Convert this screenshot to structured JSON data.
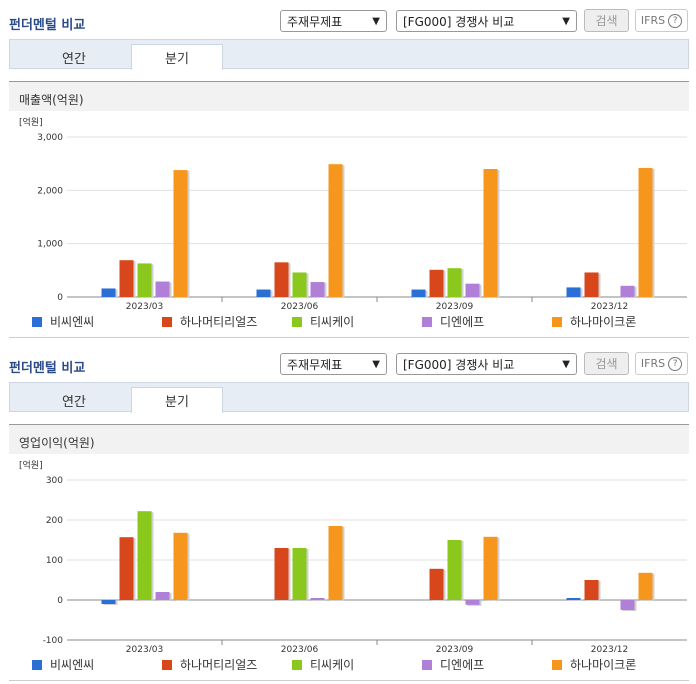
{
  "colors": {
    "blue": "#2a6fd6",
    "red": "#d8461c",
    "green": "#8bc81e",
    "purple": "#b07fd8",
    "orange": "#f7961c"
  },
  "panels": [
    {
      "title": "펀더멘털 비교",
      "select1": {
        "value": "주재무제표"
      },
      "select2": {
        "value": "[FG000] 경쟁사 비교"
      },
      "search_label": "검색",
      "ifrs_label": "IFRS",
      "help_glyph": "?",
      "tabs": [
        {
          "label": "연간"
        },
        {
          "label": "분기"
        }
      ],
      "active_tab": "분기",
      "section_title": "매출액(억원)",
      "legend": [
        "비씨엔씨",
        "하나머티리얼즈",
        "티씨케이",
        "디엔에프",
        "하나마이크론"
      ]
    },
    {
      "title": "펀더멘털 비교",
      "select1": {
        "value": "주재무제표"
      },
      "select2": {
        "value": "[FG000] 경쟁사 비교"
      },
      "search_label": "검색",
      "ifrs_label": "IFRS",
      "help_glyph": "?",
      "tabs": [
        {
          "label": "연간"
        },
        {
          "label": "분기"
        }
      ],
      "active_tab": "분기",
      "section_title": "영업이익(억원)",
      "legend": [
        "비씨엔씨",
        "하나머티리얼즈",
        "티씨케이",
        "디엔에프",
        "하나마이크론"
      ]
    }
  ],
  "chart_data": [
    {
      "type": "bar",
      "unit_label": "[억원]",
      "categories": [
        "2023/03",
        "2023/06",
        "2023/09",
        "2023/12"
      ],
      "ylim": [
        0,
        3000
      ],
      "yticks": [
        0,
        1000,
        2000,
        3000
      ],
      "ytick_labels": [
        "0",
        "1,000",
        "2,000",
        "3,000"
      ],
      "series": [
        {
          "name": "비씨엔씨",
          "color": "#2a6fd6",
          "values": [
            160,
            140,
            140,
            180
          ]
        },
        {
          "name": "하나머티리얼즈",
          "color": "#d8461c",
          "values": [
            690,
            650,
            510,
            460
          ]
        },
        {
          "name": "티씨케이",
          "color": "#8bc81e",
          "values": [
            630,
            460,
            540,
            null
          ]
        },
        {
          "name": "디엔에프",
          "color": "#b07fd8",
          "values": [
            290,
            280,
            250,
            210
          ]
        },
        {
          "name": "하나마이크론",
          "color": "#f7961c",
          "values": [
            2380,
            2490,
            2400,
            2420
          ]
        }
      ]
    },
    {
      "type": "bar",
      "unit_label": "[억원]",
      "categories": [
        "2023/03",
        "2023/06",
        "2023/09",
        "2023/12"
      ],
      "ylim": [
        -100,
        300
      ],
      "yticks": [
        -100,
        0,
        100,
        200,
        300
      ],
      "ytick_labels": [
        "-100",
        "0",
        "100",
        "200",
        "300"
      ],
      "series": [
        {
          "name": "비씨엔씨",
          "color": "#2a6fd6",
          "values": [
            -10,
            null,
            null,
            5
          ]
        },
        {
          "name": "하나머티리얼즈",
          "color": "#d8461c",
          "values": [
            157,
            130,
            78,
            50
          ]
        },
        {
          "name": "티씨케이",
          "color": "#8bc81e",
          "values": [
            222,
            130,
            150,
            null
          ]
        },
        {
          "name": "디엔에프",
          "color": "#b07fd8",
          "values": [
            20,
            5,
            -12,
            -25
          ]
        },
        {
          "name": "하나마이크론",
          "color": "#f7961c",
          "values": [
            168,
            185,
            158,
            68
          ]
        }
      ]
    }
  ]
}
